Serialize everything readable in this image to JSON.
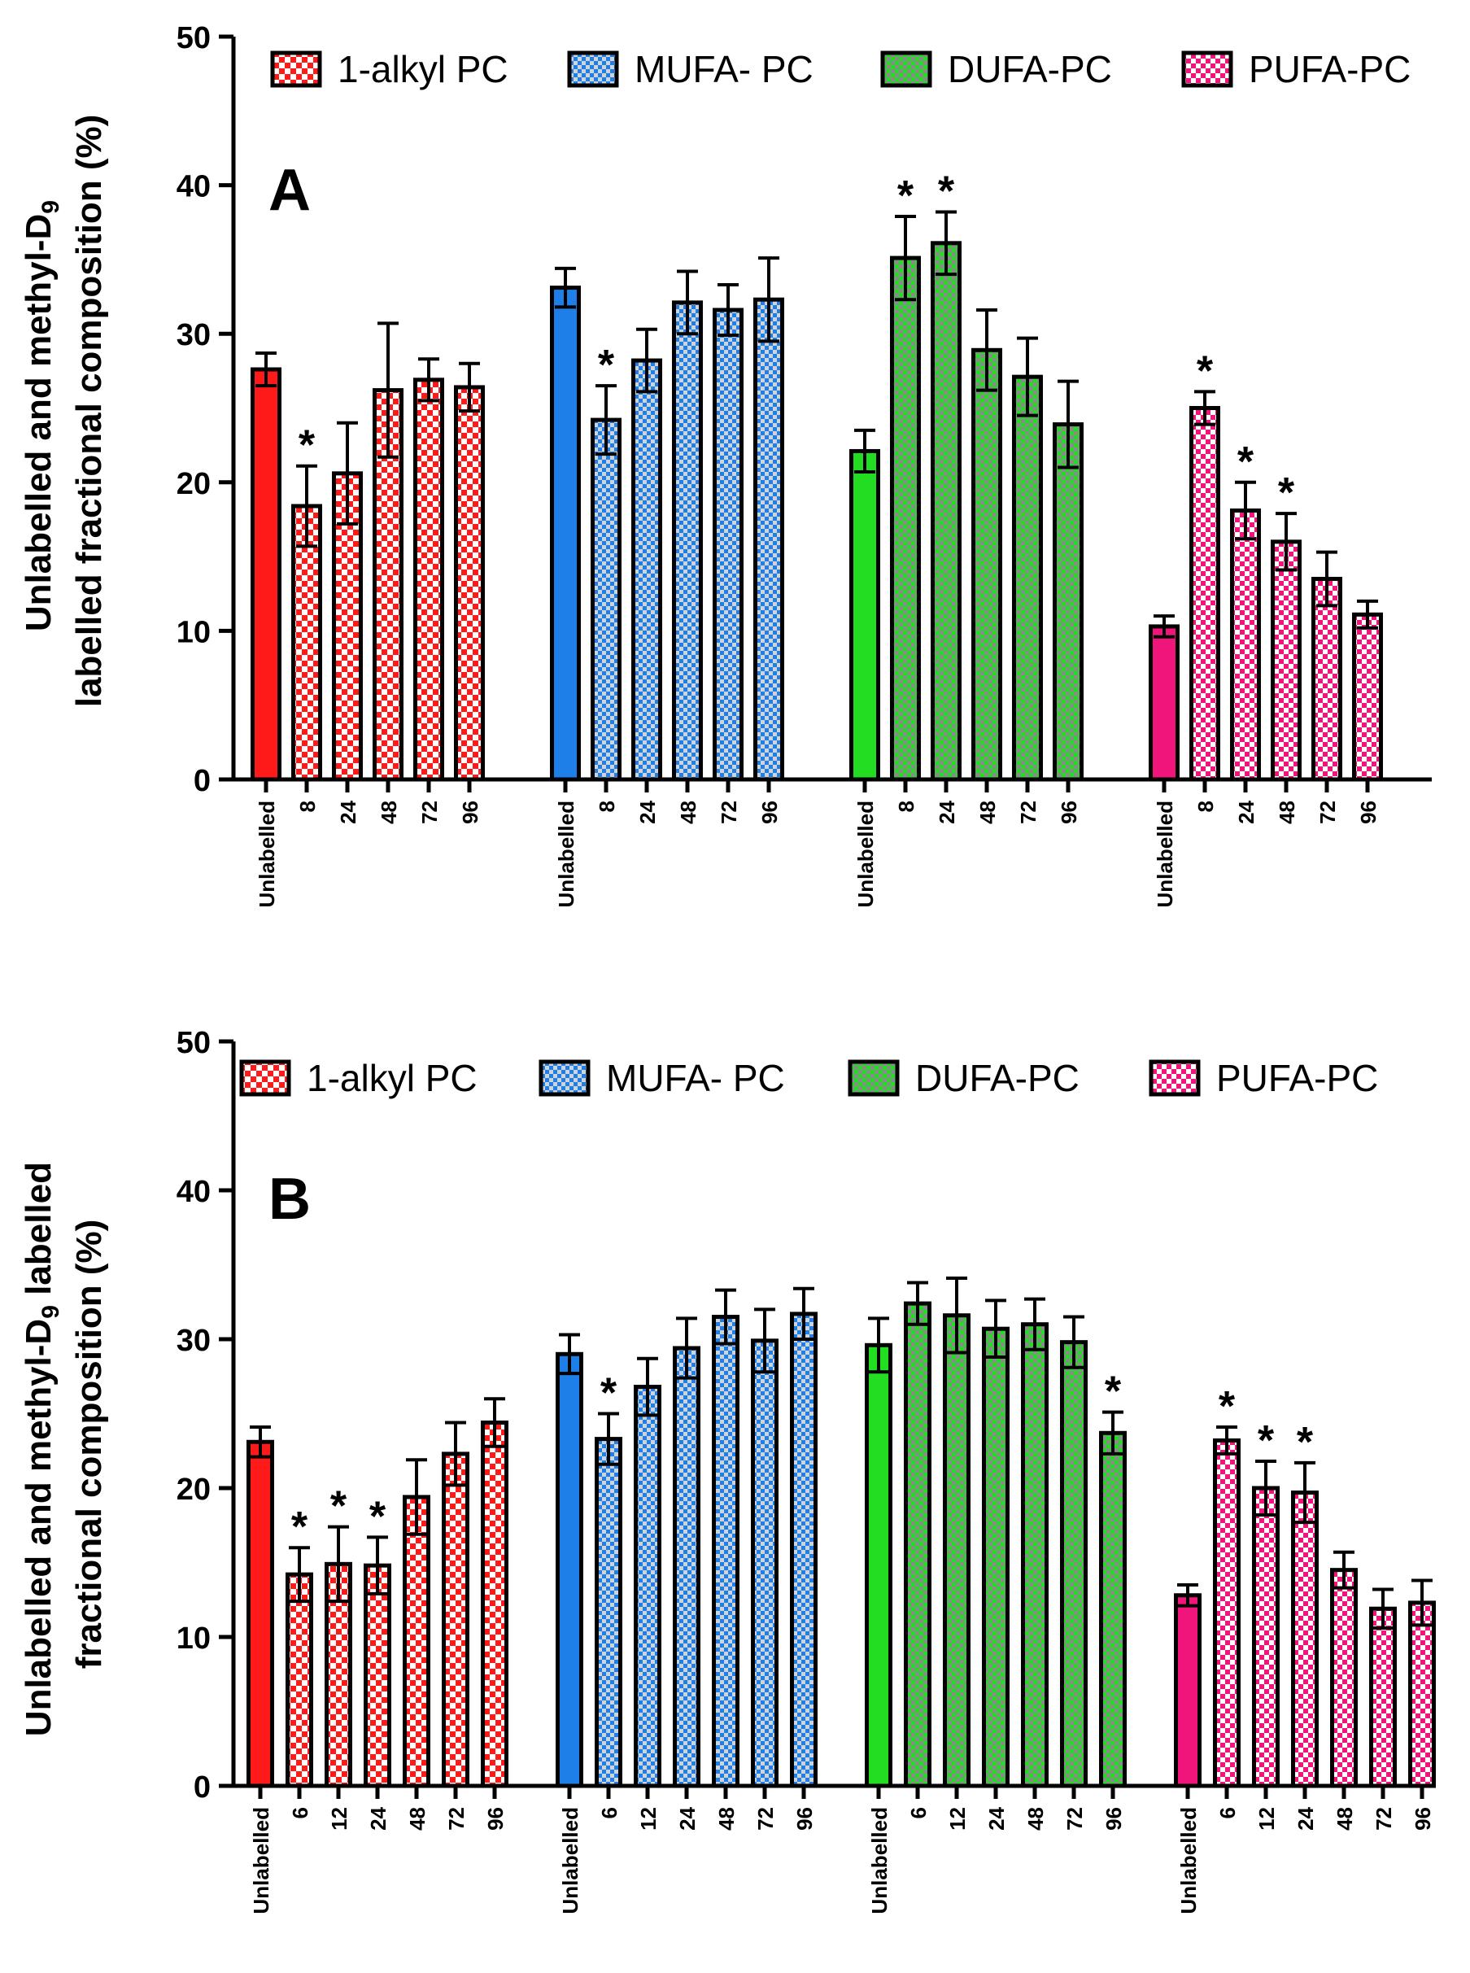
{
  "chart_data": [
    {
      "panel": "A",
      "type": "bar",
      "ylabel": [
        "Unlabelled and methyl-D9",
        "labelled fractional composition (%)"
      ],
      "ylim": [
        0,
        50
      ],
      "yticks": [
        0,
        10,
        20,
        30,
        40,
        50
      ],
      "legend": [
        "1-alkyl PC",
        "MUFA- PC",
        "DUFA-PC",
        "PUFA-PC"
      ],
      "legend_position": "top",
      "groups": [
        {
          "name": "1-alkyl PC",
          "color": "#ff1a1a",
          "categories": [
            "Unlabelled",
            "8",
            "24",
            "48",
            "72",
            "96"
          ],
          "values": [
            27.6,
            18.4,
            20.6,
            26.2,
            26.9,
            26.4
          ],
          "errors": [
            1.1,
            2.7,
            3.4,
            4.5,
            1.4,
            1.6
          ],
          "significant": [
            false,
            true,
            false,
            false,
            false,
            false
          ]
        },
        {
          "name": "MUFA- PC",
          "color": "#1e7fe8",
          "categories": [
            "Unlabelled",
            "8",
            "24",
            "48",
            "72",
            "96"
          ],
          "values": [
            33.1,
            24.2,
            28.2,
            32.1,
            31.6,
            32.3
          ],
          "errors": [
            1.3,
            2.3,
            2.1,
            2.1,
            1.7,
            2.8
          ],
          "significant": [
            false,
            true,
            false,
            false,
            false,
            false
          ]
        },
        {
          "name": "DUFA-PC",
          "color": "#22dd22",
          "categories": [
            "Unlabelled",
            "8",
            "24",
            "48",
            "72",
            "96"
          ],
          "values": [
            22.1,
            35.1,
            36.1,
            28.9,
            27.1,
            23.9
          ],
          "errors": [
            1.4,
            2.8,
            2.1,
            2.7,
            2.6,
            2.9
          ],
          "significant": [
            false,
            true,
            true,
            false,
            false,
            false
          ]
        },
        {
          "name": "PUFA-PC",
          "color": "#f0157a",
          "categories": [
            "Unlabelled",
            "8",
            "24",
            "48",
            "72",
            "96"
          ],
          "values": [
            10.3,
            25.0,
            18.1,
            16.0,
            13.5,
            11.1
          ],
          "errors": [
            0.7,
            1.1,
            1.9,
            1.9,
            1.8,
            0.9
          ],
          "significant": [
            false,
            true,
            true,
            true,
            false,
            false
          ]
        }
      ]
    },
    {
      "panel": "B",
      "type": "bar",
      "ylabel": [
        "Unlabelled and methyl-D9 labelled",
        "fractional composition (%)"
      ],
      "ylim": [
        0,
        50
      ],
      "yticks": [
        0,
        10,
        20,
        30,
        40,
        50
      ],
      "legend": [
        "1-alkyl PC",
        "MUFA- PC",
        "DUFA-PC",
        "PUFA-PC"
      ],
      "legend_position": "top",
      "groups": [
        {
          "name": "1-alkyl PC",
          "color": "#ff1a1a",
          "categories": [
            "Unlabelled",
            "6",
            "12",
            "24",
            "48",
            "72",
            "96"
          ],
          "values": [
            23.1,
            14.2,
            14.9,
            14.8,
            19.4,
            22.3,
            24.4
          ],
          "errors": [
            1.0,
            1.8,
            2.5,
            1.9,
            2.5,
            2.1,
            1.6
          ],
          "significant": [
            false,
            true,
            true,
            true,
            false,
            false,
            false
          ]
        },
        {
          "name": "MUFA- PC",
          "color": "#1e7fe8",
          "categories": [
            "Unlabelled",
            "6",
            "12",
            "24",
            "48",
            "72",
            "96"
          ],
          "values": [
            29.0,
            23.3,
            26.8,
            29.4,
            31.5,
            29.9,
            31.7
          ],
          "errors": [
            1.3,
            1.7,
            1.9,
            2.0,
            1.8,
            2.1,
            1.7
          ],
          "significant": [
            false,
            true,
            false,
            false,
            false,
            false,
            false
          ]
        },
        {
          "name": "DUFA-PC",
          "color": "#22dd22",
          "categories": [
            "Unlabelled",
            "6",
            "12",
            "24",
            "48",
            "72",
            "96"
          ],
          "values": [
            29.6,
            32.4,
            31.6,
            30.7,
            31.0,
            29.8,
            23.7
          ],
          "errors": [
            1.8,
            1.4,
            2.5,
            1.9,
            1.7,
            1.7,
            1.4
          ],
          "significant": [
            false,
            false,
            false,
            false,
            false,
            false,
            true
          ]
        },
        {
          "name": "PUFA-PC",
          "color": "#f0157a",
          "categories": [
            "Unlabelled",
            "6",
            "12",
            "24",
            "48",
            "72",
            "96"
          ],
          "values": [
            12.8,
            23.2,
            20.0,
            19.7,
            14.5,
            11.9,
            12.3
          ],
          "errors": [
            0.7,
            0.9,
            1.8,
            2.0,
            1.2,
            1.3,
            1.5
          ],
          "significant": [
            false,
            true,
            true,
            true,
            false,
            false,
            false
          ]
        }
      ]
    }
  ]
}
